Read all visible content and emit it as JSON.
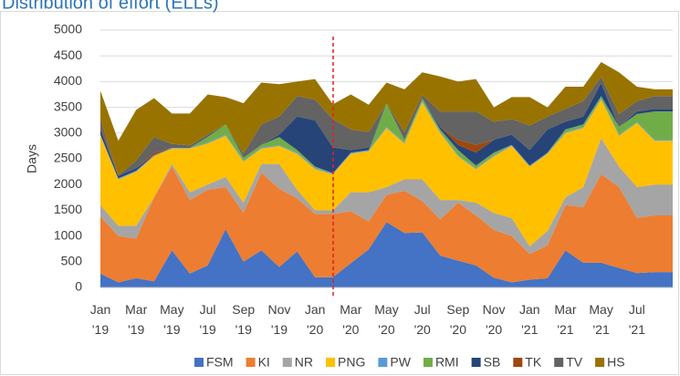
{
  "chart_data": {
    "type": "stacked-area",
    "title": "Distribution of effort (ELLs)",
    "y_label": "Days",
    "categories": [
      "Jan '19",
      null,
      "Mar '19",
      null,
      "May '19",
      null,
      "Jul '19",
      null,
      "Sep '19",
      null,
      "Nov '19",
      null,
      "Jan '20",
      null,
      "Mar '20",
      null,
      "May '20",
      null,
      "Jul '20",
      null,
      "Sep '20",
      null,
      "Nov '20",
      null,
      "Jan '21",
      null,
      "Mar '21",
      null,
      "May '21",
      null,
      "Jul '21",
      null,
      null
    ],
    "series": [
      {
        "name": "FSM",
        "color": "#4472c4",
        "values": [
          270,
          100,
          180,
          120,
          720,
          270,
          430,
          1130,
          500,
          720,
          400,
          700,
          200,
          200,
          470,
          740,
          1270,
          1060,
          1070,
          620,
          520,
          430,
          190,
          100,
          150,
          180,
          720,
          480,
          480,
          380,
          280,
          300,
          300
        ]
      },
      {
        "name": "KI",
        "color": "#ed7d31",
        "values": [
          1110,
          900,
          770,
          1630,
          1630,
          1430,
          1470,
          820,
          950,
          1510,
          1520,
          1030,
          1230,
          1230,
          1010,
          540,
          530,
          820,
          610,
          700,
          1130,
          970,
          930,
          900,
          500,
          640,
          880,
          1080,
          1720,
          1570,
          1070,
          1100,
          1100
        ]
      },
      {
        "name": "NR",
        "color": "#a5a5a5",
        "values": [
          220,
          200,
          250,
          0,
          50,
          150,
          100,
          200,
          200,
          170,
          480,
          170,
          70,
          70,
          370,
          570,
          150,
          220,
          420,
          380,
          50,
          250,
          330,
          350,
          150,
          280,
          150,
          390,
          700,
          400,
          600,
          600,
          600
        ]
      },
      {
        "name": "PNG",
        "color": "#ffc000",
        "values": [
          1350,
          900,
          1050,
          800,
          300,
          850,
          800,
          800,
          800,
          300,
          350,
          700,
          800,
          700,
          750,
          800,
          1150,
          700,
          1500,
          1300,
          850,
          650,
          1100,
          1400,
          1550,
          1500,
          1250,
          1150,
          750,
          600,
          1250,
          850,
          850
        ]
      },
      {
        "name": "PW",
        "color": "#5b9bd5",
        "values": [
          20,
          20,
          20,
          20,
          10,
          10,
          20,
          20,
          20,
          20,
          20,
          20,
          20,
          20,
          20,
          20,
          20,
          20,
          20,
          20,
          20,
          20,
          20,
          20,
          20,
          20,
          20,
          20,
          20,
          20,
          20,
          20,
          20
        ]
      },
      {
        "name": "RMI",
        "color": "#70ad47",
        "values": [
          0,
          0,
          0,
          0,
          0,
          0,
          100,
          200,
          50,
          50,
          150,
          50,
          30,
          0,
          0,
          0,
          450,
          50,
          50,
          50,
          100,
          50,
          50,
          0,
          0,
          0,
          50,
          50,
          50,
          150,
          150,
          550,
          550
        ]
      },
      {
        "name": "SB",
        "color": "#264478",
        "values": [
          100,
          50,
          50,
          0,
          0,
          0,
          0,
          0,
          0,
          0,
          50,
          650,
          900,
          500,
          50,
          50,
          0,
          0,
          0,
          50,
          100,
          250,
          250,
          200,
          300,
          450,
          150,
          150,
          250,
          0,
          50,
          50,
          50
        ]
      },
      {
        "name": "TK",
        "color": "#9e480e",
        "values": [
          50,
          0,
          0,
          50,
          0,
          0,
          0,
          0,
          0,
          0,
          0,
          0,
          0,
          0,
          0,
          0,
          0,
          0,
          0,
          0,
          100,
          150,
          0,
          0,
          0,
          0,
          0,
          0,
          0,
          0,
          0,
          0,
          0
        ]
      },
      {
        "name": "TV",
        "color": "#636363",
        "values": [
          150,
          0,
          150,
          300,
          80,
          50,
          50,
          0,
          80,
          400,
          350,
          400,
          400,
          550,
          400,
          300,
          0,
          150,
          70,
          300,
          550,
          650,
          350,
          300,
          480,
          250,
          250,
          300,
          120,
          250,
          200,
          250,
          250
        ]
      },
      {
        "name": "HS",
        "color": "#997300",
        "values": [
          550,
          680,
          980,
          760,
          590,
          620,
          780,
          530,
          980,
          810,
          630,
          280,
          400,
          290,
          680,
          530,
          410,
          830,
          440,
          680,
          580,
          630,
          280,
          430,
          550,
          180,
          430,
          280,
          290,
          810,
          280,
          130,
          130
        ]
      }
    ],
    "ylim": [
      0,
      5000
    ],
    "yticks": [
      0,
      500,
      1000,
      1500,
      2000,
      2500,
      3000,
      3500,
      4000,
      4500,
      5000
    ],
    "grid": true,
    "legend": "bottom"
  }
}
